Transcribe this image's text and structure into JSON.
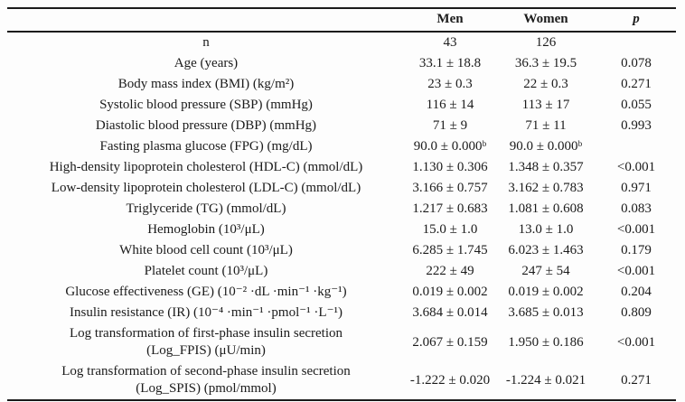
{
  "colors": {
    "text": "#1b1b1b",
    "background": "#fdfdfd",
    "rule": "#1b1b1b"
  },
  "table": {
    "headers": {
      "variable": "",
      "men": "Men",
      "women": "Women",
      "p": "p"
    },
    "rows": [
      {
        "label": "n",
        "men": "43",
        "women": "126",
        "p": ""
      },
      {
        "label": "Age (years)",
        "men": "33.1 ± 18.8",
        "women": "36.3 ± 19.5",
        "p": "0.078"
      },
      {
        "label": "Body mass index (BMI) (kg/m²)",
        "men": "23 ± 0.3",
        "women": "22 ± 0.3",
        "p": "0.271"
      },
      {
        "label": "Systolic blood pressure (SBP) (mmHg)",
        "men": "116 ± 14",
        "women": "113 ± 17",
        "p": "0.055"
      },
      {
        "label": "Diastolic blood pressure (DBP) (mmHg)",
        "men": "71 ± 9",
        "women": "71 ± 11",
        "p": "0.993"
      },
      {
        "label": "Fasting plasma glucose (FPG) (mg/dL)",
        "men": "90.0 ± 0.000ᵇ",
        "women": "90.0 ± 0.000ᵇ",
        "p": ""
      },
      {
        "label": "High-density lipoprotein cholesterol (HDL-C) (mmol/dL)",
        "men": "1.130 ± 0.306",
        "women": "1.348 ± 0.357",
        "p": "<0.001"
      },
      {
        "label": "Low-density lipoprotein cholesterol (LDL-C) (mmol/dL)",
        "men": "3.166 ± 0.757",
        "women": "3.162 ± 0.783",
        "p": "0.971"
      },
      {
        "label": "Triglyceride (TG) (mmol/dL)",
        "men": "1.217 ± 0.683",
        "women": "1.081 ± 0.608",
        "p": "0.083"
      },
      {
        "label": "Hemoglobin (10³/μL)",
        "men": "15.0 ± 1.0",
        "women": "13.0 ± 1.0",
        "p": "<0.001"
      },
      {
        "label": "White blood cell count (10³/μL)",
        "men": "6.285 ± 1.745",
        "women": "6.023 ± 1.463",
        "p": "0.179"
      },
      {
        "label": "Platelet count (10³/μL)",
        "men": "222 ± 49",
        "women": "247 ± 54",
        "p": "<0.001"
      },
      {
        "label": "Glucose effectiveness (GE) (10⁻² ·dL ·min⁻¹ ·kg⁻¹)",
        "men": "0.019 ± 0.002",
        "women": "0.019 ± 0.002",
        "p": "0.204"
      },
      {
        "label": "Insulin resistance (IR) (10⁻⁴ ·min⁻¹ ·pmol⁻¹ ·L⁻¹)",
        "men": "3.684 ± 0.014",
        "women": "3.685 ± 0.013",
        "p": "0.809"
      },
      {
        "label": "Log transformation of first-phase insulin secretion",
        "label2": "(Log_FPIS) (μU/min)",
        "men": "2.067 ± 0.159",
        "women": "1.950 ± 0.186",
        "p": "<0.001"
      },
      {
        "label": "Log transformation of second-phase insulin secretion",
        "label2": "(Log_SPIS) (pmol/mmol)",
        "men": "-1.222 ± 0.020",
        "women": "-1.224 ± 0.021",
        "p": "0.271"
      }
    ]
  }
}
